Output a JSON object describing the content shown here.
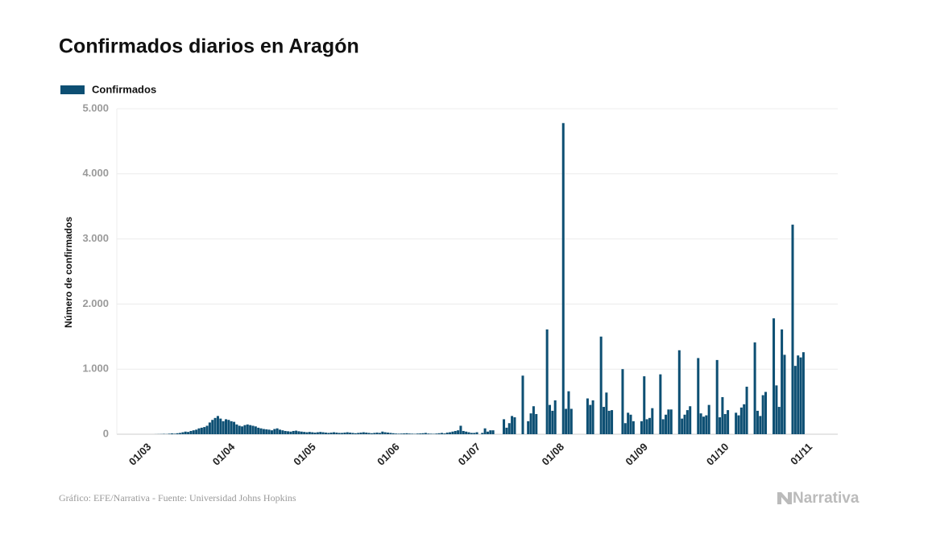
{
  "chart_data": {
    "type": "bar",
    "title": "Confirmados diarios en Aragón",
    "y_label": "Número de confirmados",
    "source": "Gráfico: EFE/Narrativa - Fuente: Universidad Johns Hopkins",
    "brand": "Narrativa",
    "legend": "top-left",
    "grid": true,
    "ylim": [
      0,
      5000
    ],
    "yticks": [
      0,
      {
        "value": 1000,
        "label": "1.000"
      },
      {
        "value": 2000,
        "label": "2.000"
      },
      {
        "value": 3000,
        "label": "3.000"
      },
      {
        "value": 4000,
        "label": "4.000"
      },
      {
        "value": 5000,
        "label": "5.000"
      }
    ],
    "categories": [
      "01/03",
      null,
      null,
      null,
      null,
      null,
      null,
      null,
      null,
      null,
      null,
      null,
      null,
      null,
      null,
      null,
      null,
      null,
      null,
      null,
      null,
      null,
      null,
      null,
      null,
      null,
      null,
      null,
      null,
      null,
      null,
      "01/04",
      null,
      null,
      null,
      null,
      null,
      null,
      null,
      null,
      null,
      null,
      null,
      null,
      null,
      null,
      null,
      null,
      null,
      null,
      null,
      null,
      null,
      null,
      null,
      null,
      null,
      null,
      null,
      null,
      null,
      "01/05",
      null,
      null,
      null,
      null,
      null,
      null,
      null,
      null,
      null,
      null,
      null,
      null,
      null,
      null,
      null,
      null,
      null,
      null,
      null,
      null,
      null,
      null,
      null,
      null,
      null,
      null,
      null,
      null,
      null,
      null,
      "01/06",
      null,
      null,
      null,
      null,
      null,
      null,
      null,
      null,
      null,
      null,
      null,
      null,
      null,
      null,
      null,
      null,
      null,
      null,
      null,
      null,
      null,
      null,
      null,
      null,
      null,
      null,
      null,
      null,
      null,
      "01/07",
      null,
      null,
      null,
      null,
      null,
      null,
      null,
      null,
      null,
      null,
      null,
      null,
      null,
      null,
      null,
      null,
      null,
      null,
      null,
      null,
      null,
      null,
      null,
      null,
      null,
      null,
      null,
      null,
      null,
      null,
      "01/08",
      null,
      null,
      null,
      null,
      null,
      null,
      null,
      null,
      null,
      null,
      null,
      null,
      null,
      null,
      null,
      null,
      null,
      null,
      null,
      null,
      null,
      null,
      null,
      null,
      null,
      null,
      null,
      null,
      null,
      null,
      "01/09",
      null,
      null,
      null,
      null,
      null,
      null,
      null,
      null,
      null,
      null,
      null,
      null,
      null,
      null,
      null,
      null,
      null,
      null,
      null,
      null,
      null,
      null,
      null,
      null,
      null,
      null,
      null,
      null,
      null,
      "01/10",
      null,
      null,
      null,
      null,
      null,
      null,
      null,
      null,
      null,
      null,
      null,
      null,
      null,
      null,
      null,
      null,
      null,
      null,
      null,
      null,
      null,
      null,
      null,
      null,
      null,
      null,
      null,
      null,
      null,
      null,
      "01/11"
    ],
    "series": [
      {
        "name": "Confirmados",
        "color": "#0d4f73",
        "values": [
          0,
          0,
          0,
          0,
          1,
          2,
          3,
          5,
          3,
          8,
          12,
          8,
          15,
          20,
          30,
          40,
          35,
          50,
          60,
          70,
          90,
          100,
          110,
          130,
          180,
          220,
          250,
          280,
          240,
          200,
          230,
          220,
          200,
          190,
          150,
          130,
          120,
          140,
          150,
          140,
          130,
          120,
          100,
          90,
          80,
          75,
          70,
          60,
          80,
          90,
          70,
          60,
          50,
          45,
          40,
          50,
          55,
          45,
          40,
          35,
          30,
          35,
          30,
          25,
          30,
          35,
          30,
          25,
          20,
          25,
          30,
          25,
          20,
          20,
          25,
          30,
          25,
          20,
          15,
          20,
          25,
          30,
          25,
          20,
          15,
          20,
          25,
          20,
          40,
          30,
          25,
          20,
          15,
          10,
          8,
          10,
          12,
          15,
          10,
          8,
          6,
          10,
          12,
          15,
          20,
          10,
          8,
          6,
          10,
          15,
          20,
          12,
          25,
          30,
          40,
          50,
          60,
          130,
          50,
          40,
          30,
          20,
          20,
          30,
          0,
          20,
          90,
          40,
          60,
          60,
          0,
          0,
          0,
          230,
          100,
          170,
          280,
          260,
          0,
          0,
          900,
          0,
          200,
          320,
          430,
          310,
          0,
          0,
          0,
          1610,
          450,
          360,
          520,
          0,
          0,
          4780,
          390,
          660,
          390,
          0,
          0,
          0,
          0,
          0,
          550,
          450,
          520,
          0,
          0,
          1500,
          420,
          640,
          360,
          370,
          0,
          0,
          0,
          1000,
          170,
          330,
          300,
          200,
          0,
          0,
          200,
          890,
          230,
          250,
          400,
          0,
          0,
          920,
          230,
          300,
          380,
          380,
          0,
          0,
          1290,
          240,
          300,
          370,
          430,
          0,
          0,
          1170,
          320,
          270,
          290,
          450,
          0,
          0,
          1140,
          260,
          570,
          310,
          370,
          0,
          0,
          330,
          290,
          410,
          460,
          730,
          0,
          0,
          1410,
          360,
          280,
          600,
          650,
          0,
          0,
          1780,
          750,
          420,
          1610,
          1220,
          0,
          0,
          3220,
          1050,
          1210,
          1180,
          1260,
          null
        ]
      }
    ]
  }
}
